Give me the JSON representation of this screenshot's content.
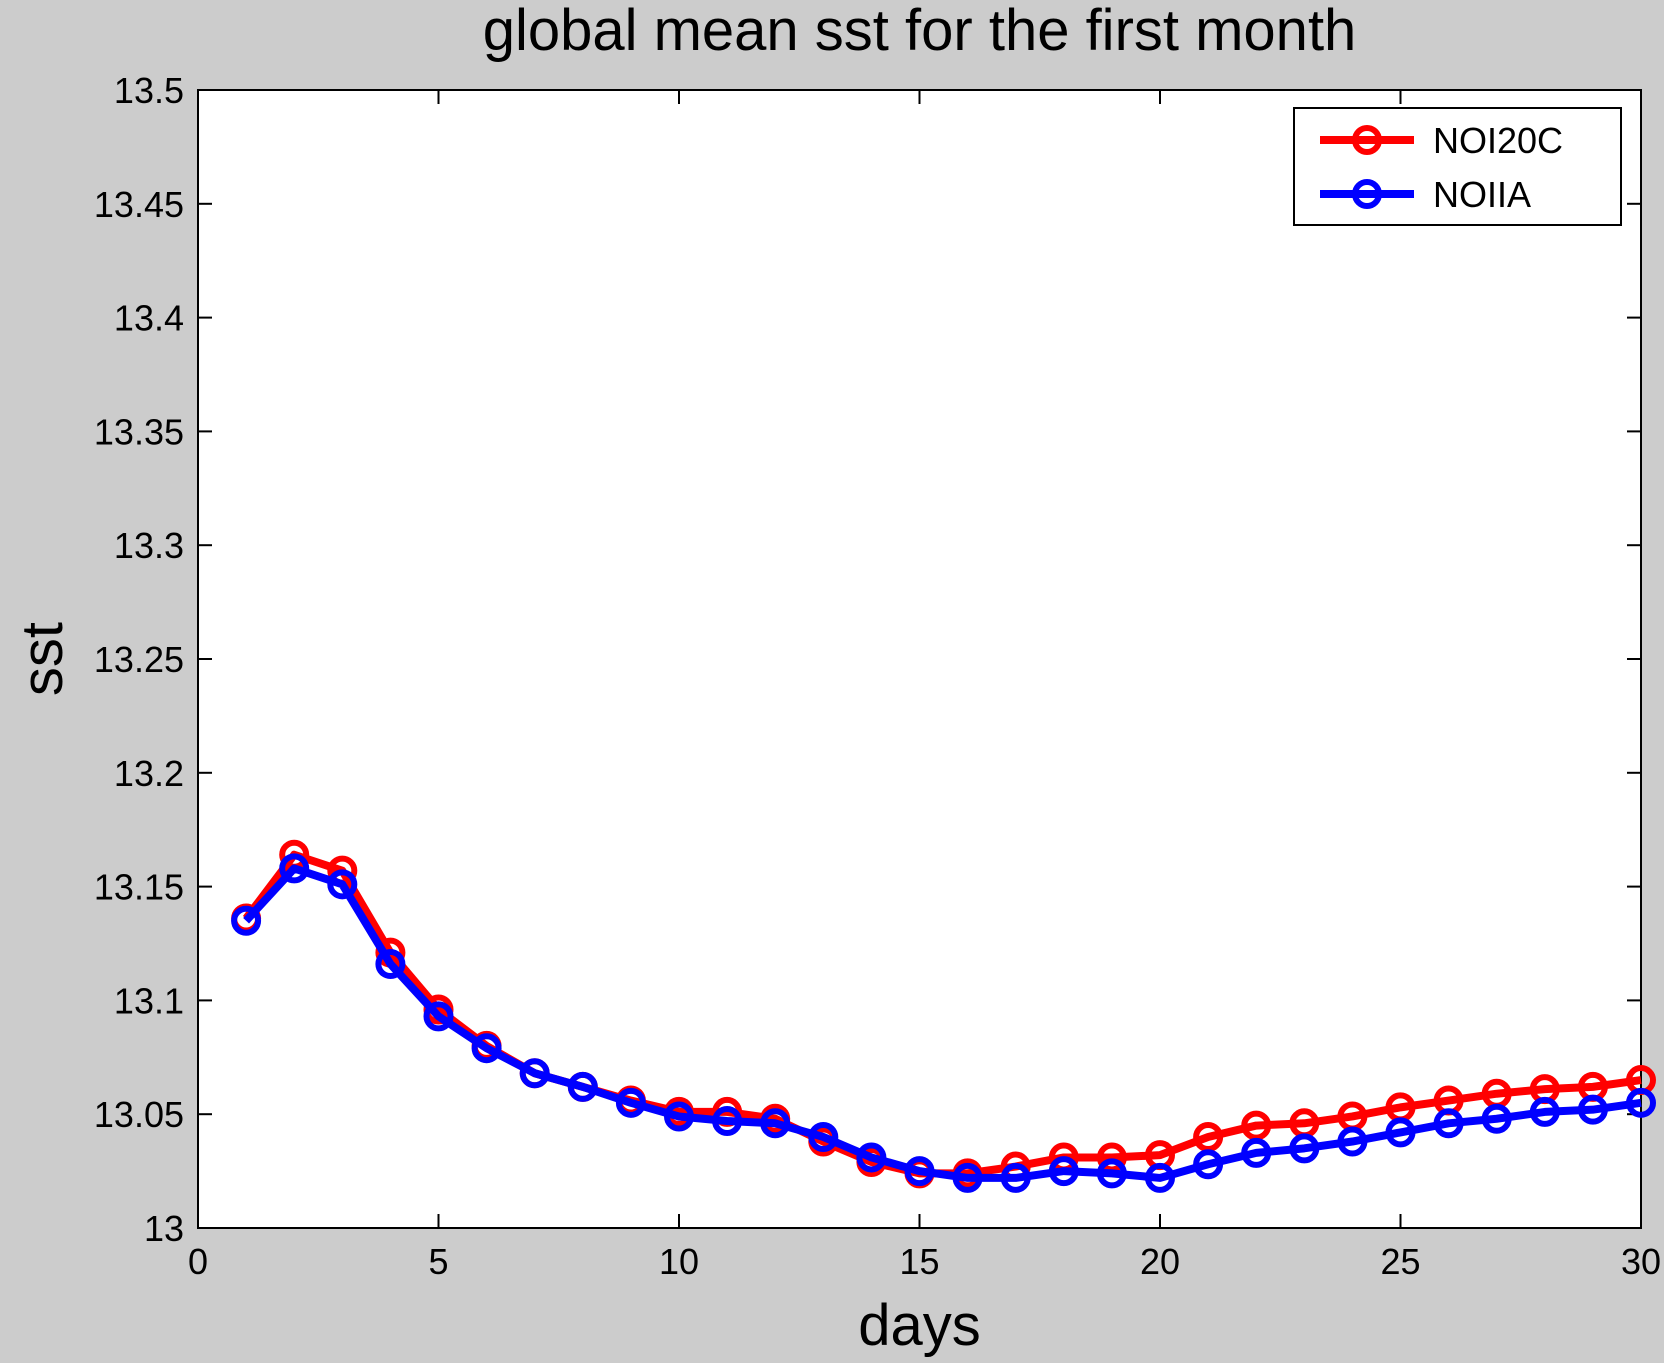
{
  "chart_data": {
    "type": "line",
    "title": "global mean sst for the first month",
    "xlabel": "days",
    "ylabel": "sst",
    "xlim": [
      0,
      30
    ],
    "ylim": [
      13,
      13.5
    ],
    "xticks": [
      "0",
      "5",
      "10",
      "15",
      "20",
      "25",
      "30"
    ],
    "yticks": [
      "13",
      "13.05",
      "13.1",
      "13.15",
      "13.2",
      "13.25",
      "13.3",
      "13.35",
      "13.4",
      "13.45",
      "13.5"
    ],
    "grid": false,
    "legend_position": "top-right",
    "x": [
      1,
      2,
      3,
      4,
      5,
      6,
      7,
      8,
      9,
      10,
      11,
      12,
      13,
      14,
      15,
      16,
      17,
      18,
      19,
      20,
      21,
      22,
      23,
      24,
      25,
      26,
      27,
      28,
      29,
      30
    ],
    "series": [
      {
        "name": "NOI20C",
        "color": "#ff0000",
        "marker": "circle",
        "values": [
          13.136,
          13.164,
          13.157,
          13.121,
          13.096,
          13.08,
          13.068,
          13.062,
          13.056,
          13.051,
          13.051,
          13.048,
          13.038,
          13.029,
          13.024,
          13.024,
          13.027,
          13.031,
          13.031,
          13.032,
          13.04,
          13.045,
          13.046,
          13.049,
          13.053,
          13.056,
          13.059,
          13.061,
          13.062,
          13.065
        ]
      },
      {
        "name": "NOIIA",
        "color": "#0000ff",
        "marker": "circle",
        "values": [
          13.135,
          13.158,
          13.151,
          13.116,
          13.093,
          13.079,
          13.068,
          13.062,
          13.055,
          13.049,
          13.047,
          13.046,
          13.04,
          13.031,
          13.025,
          13.022,
          13.022,
          13.025,
          13.024,
          13.022,
          13.028,
          13.033,
          13.035,
          13.038,
          13.042,
          13.046,
          13.048,
          13.051,
          13.052,
          13.055
        ]
      }
    ]
  }
}
